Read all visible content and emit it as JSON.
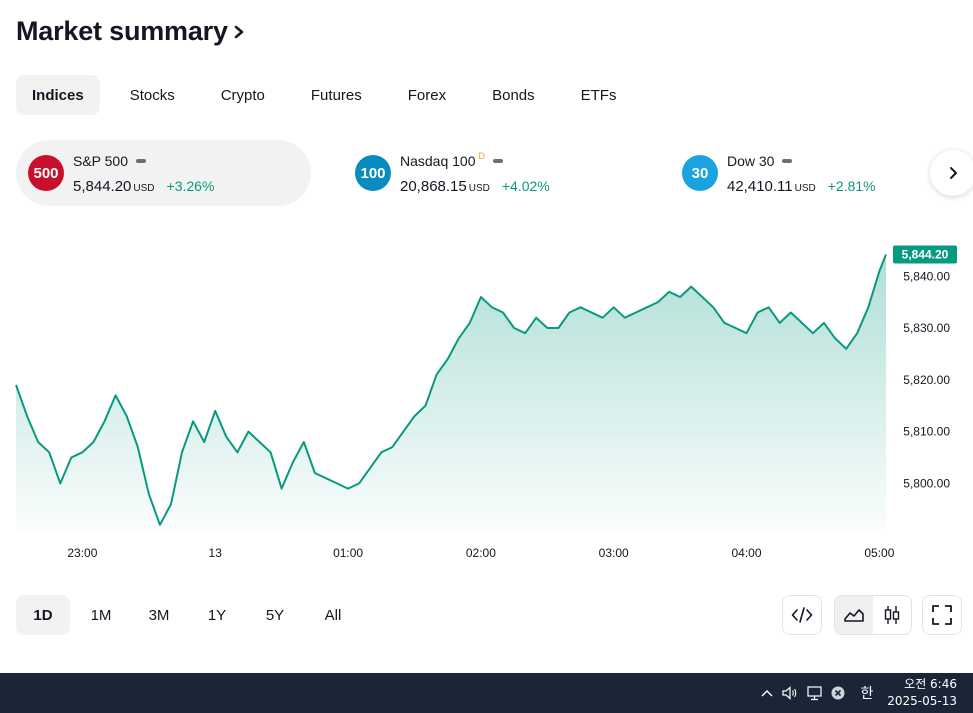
{
  "header": {
    "title": "Market summary"
  },
  "tabs": [
    "Indices",
    "Stocks",
    "Crypto",
    "Futures",
    "Forex",
    "Bonds",
    "ETFs"
  ],
  "cards": [
    {
      "badge": "500",
      "badge_color": "#c8102e",
      "name": "S&P 500",
      "sup": "",
      "value": "5,844.20",
      "currency": "USD",
      "change": "+3.26%"
    },
    {
      "badge": "100",
      "badge_color": "#0a8bbd",
      "name": "Nasdaq 100",
      "sup": "D",
      "value": "20,868.15",
      "currency": "USD",
      "change": "+4.02%"
    },
    {
      "badge": "30",
      "badge_color": "#1aa3e0",
      "name": "Dow 30",
      "sup": "",
      "value": "42,410.11",
      "currency": "USD",
      "change": "+2.81%"
    }
  ],
  "colors": {
    "line": "#089981",
    "positive": "#089981"
  },
  "chart_data": {
    "type": "area",
    "symbol": "S&P 500",
    "last_label": "5,844.20",
    "x_ticks": [
      "23:00",
      "13",
      "01:00",
      "02:00",
      "03:00",
      "04:00",
      "05:00"
    ],
    "y_ticks": [
      "5,800.00",
      "5,810.00",
      "5,820.00",
      "5,830.00",
      "5,840.00"
    ],
    "ylim": [
      5791,
      5847
    ],
    "x_range": [
      "22:30",
      "05:03"
    ],
    "points": [
      [
        "22:30",
        5819
      ],
      [
        "22:35",
        5813
      ],
      [
        "22:40",
        5808
      ],
      [
        "22:45",
        5806
      ],
      [
        "22:50",
        5800
      ],
      [
        "22:55",
        5805
      ],
      [
        "23:00",
        5806
      ],
      [
        "23:05",
        5808
      ],
      [
        "23:10",
        5812
      ],
      [
        "23:15",
        5817
      ],
      [
        "23:20",
        5813
      ],
      [
        "23:25",
        5807
      ],
      [
        "23:30",
        5798
      ],
      [
        "23:35",
        5792
      ],
      [
        "23:40",
        5796
      ],
      [
        "23:45",
        5806
      ],
      [
        "23:50",
        5812
      ],
      [
        "23:55",
        5808
      ],
      [
        "00:00",
        5814
      ],
      [
        "00:05",
        5809
      ],
      [
        "00:10",
        5806
      ],
      [
        "00:15",
        5810
      ],
      [
        "00:20",
        5808
      ],
      [
        "00:25",
        5806
      ],
      [
        "00:30",
        5799
      ],
      [
        "00:35",
        5804
      ],
      [
        "00:40",
        5808
      ],
      [
        "00:45",
        5802
      ],
      [
        "00:50",
        5801
      ],
      [
        "00:55",
        5800
      ],
      [
        "01:00",
        5799
      ],
      [
        "01:05",
        5800
      ],
      [
        "01:10",
        5803
      ],
      [
        "01:15",
        5806
      ],
      [
        "01:20",
        5807
      ],
      [
        "01:25",
        5810
      ],
      [
        "01:30",
        5813
      ],
      [
        "01:35",
        5815
      ],
      [
        "01:40",
        5821
      ],
      [
        "01:45",
        5824
      ],
      [
        "01:50",
        5828
      ],
      [
        "01:55",
        5831
      ],
      [
        "02:00",
        5836
      ],
      [
        "02:05",
        5834
      ],
      [
        "02:10",
        5833
      ],
      [
        "02:15",
        5830
      ],
      [
        "02:20",
        5829
      ],
      [
        "02:25",
        5832
      ],
      [
        "02:30",
        5830
      ],
      [
        "02:35",
        5830
      ],
      [
        "02:40",
        5833
      ],
      [
        "02:45",
        5834
      ],
      [
        "02:50",
        5833
      ],
      [
        "02:55",
        5832
      ],
      [
        "03:00",
        5834
      ],
      [
        "03:05",
        5832
      ],
      [
        "03:10",
        5833
      ],
      [
        "03:15",
        5834
      ],
      [
        "03:20",
        5835
      ],
      [
        "03:25",
        5837
      ],
      [
        "03:30",
        5836
      ],
      [
        "03:35",
        5838
      ],
      [
        "03:40",
        5836
      ],
      [
        "03:45",
        5834
      ],
      [
        "03:50",
        5831
      ],
      [
        "03:55",
        5830
      ],
      [
        "04:00",
        5829
      ],
      [
        "04:05",
        5833
      ],
      [
        "04:10",
        5834
      ],
      [
        "04:15",
        5831
      ],
      [
        "04:20",
        5833
      ],
      [
        "04:25",
        5831
      ],
      [
        "04:30",
        5829
      ],
      [
        "04:35",
        5831
      ],
      [
        "04:40",
        5828
      ],
      [
        "04:45",
        5826
      ],
      [
        "04:50",
        5829
      ],
      [
        "04:55",
        5834
      ],
      [
        "05:00",
        5841
      ],
      [
        "05:03",
        5844.2
      ]
    ]
  },
  "ranges": [
    "1D",
    "1M",
    "3M",
    "1Y",
    "5Y",
    "All"
  ],
  "taskbar": {
    "time": "오전 6:46",
    "date": "2025-05-13",
    "ime": "한"
  }
}
